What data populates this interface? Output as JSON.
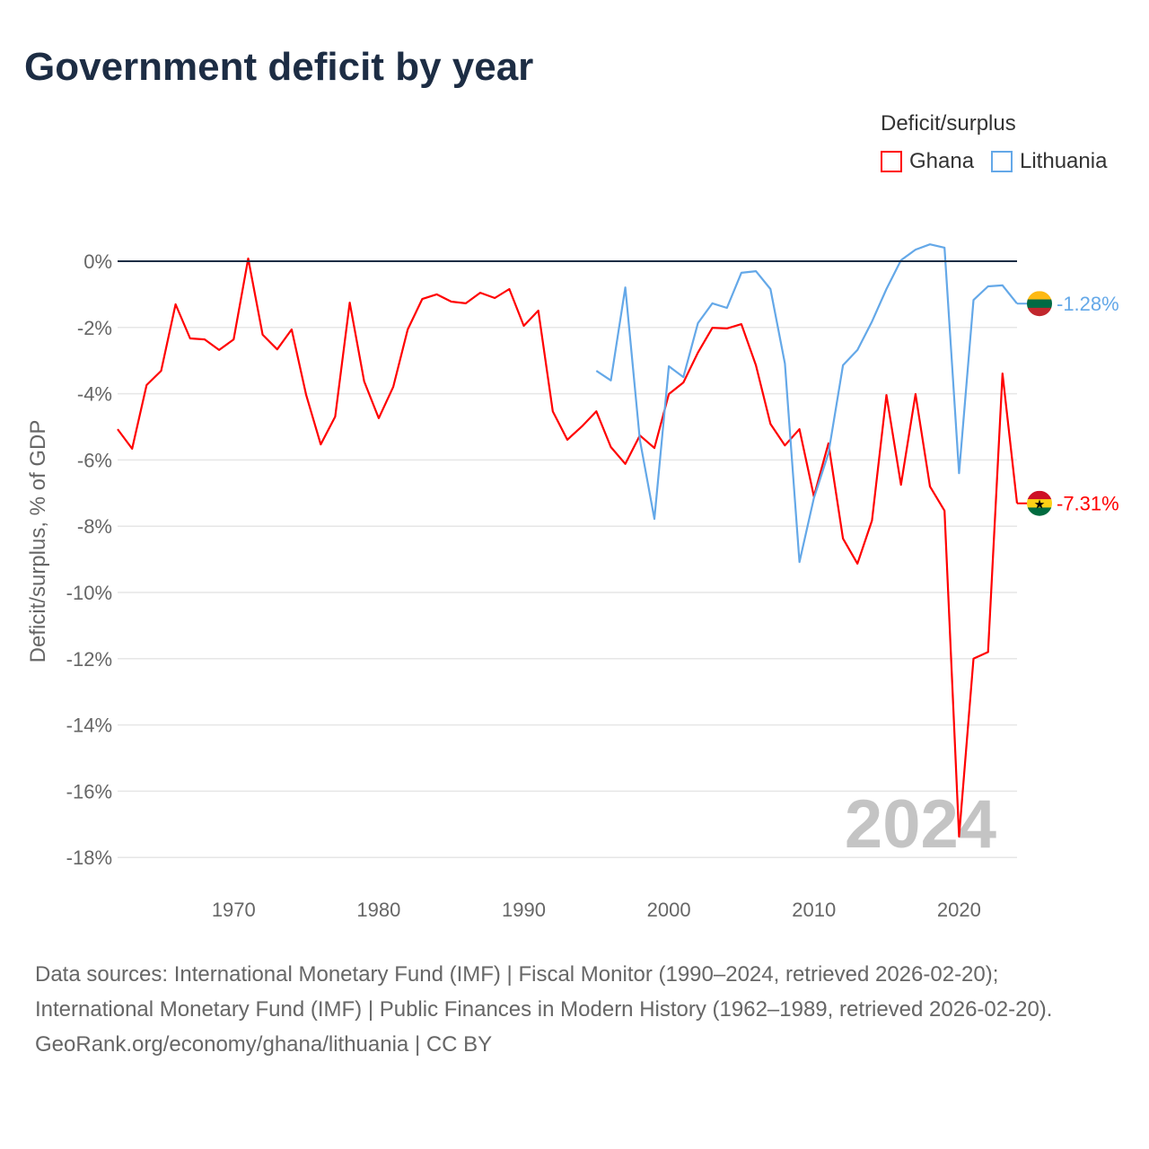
{
  "title": "Government deficit by year",
  "legend": {
    "title": "Deficit/surplus",
    "items": [
      "Ghana",
      "Lithuania"
    ]
  },
  "year_watermark": "2024",
  "sources": {
    "line1": "Data sources: International Monetary Fund (IMF) | Fiscal Monitor (1990–2024, retrieved 2026-02-20);",
    "line2": "International Monetary Fund (IMF) | Public Finances in Modern History (1962–1989, retrieved 2026-02-20).",
    "line3": "GeoRank.org/economy/ghana/lithuania | CC BY"
  },
  "chart_data": {
    "type": "line",
    "title": "Government deficit by year",
    "xlabel": "",
    "ylabel": "Deficit/surplus, % of GDP",
    "xlim": [
      1962,
      2024
    ],
    "ylim": [
      -18.5,
      0.6
    ],
    "xticks": [
      1970,
      1980,
      1990,
      2000,
      2010,
      2020
    ],
    "yticks": [
      0,
      -2,
      -4,
      -6,
      -8,
      -10,
      -12,
      -14,
      -16,
      -18
    ],
    "ytick_labels": [
      "0%",
      "-2%",
      "-4%",
      "-6%",
      "-8%",
      "-10%",
      "-12%",
      "-14%",
      "-16%",
      "-18%"
    ],
    "grid": true,
    "legend_position": "top-right",
    "series": [
      {
        "name": "Ghana",
        "color": "#ff0000",
        "end_label": "-7.31%",
        "start_year": 1962,
        "values": [
          -5.07,
          -5.66,
          -3.74,
          -3.31,
          -1.3,
          -2.33,
          -2.36,
          -2.68,
          -2.36,
          0.08,
          -2.22,
          -2.66,
          -2.06,
          -4.04,
          -5.53,
          -4.69,
          -1.25,
          -3.63,
          -4.74,
          -3.79,
          -2.06,
          -1.14,
          -1.0,
          -1.22,
          -1.27,
          -0.95,
          -1.11,
          -0.84,
          -1.95,
          -1.49,
          -4.53,
          -5.39,
          -4.99,
          -4.53,
          -5.61,
          -6.12,
          -5.26,
          -5.64,
          -4.01,
          -3.66,
          -2.76,
          -2.01,
          -2.03,
          -1.9,
          -3.14,
          -4.91,
          -5.56,
          -5.07,
          -7.1,
          -5.5,
          -8.37,
          -9.13,
          -7.83,
          -4.04,
          -6.75,
          -4.01,
          -6.8,
          -7.53,
          -17.37,
          -12.0,
          -11.8,
          -3.39,
          -7.31
        ]
      },
      {
        "name": "Lithuania",
        "color": "#64a8e8",
        "end_label": "-1.28%",
        "start_year": 1995,
        "values": [
          -3.31,
          -3.6,
          -0.79,
          -5.39,
          -7.78,
          -3.17,
          -3.5,
          -1.87,
          -1.27,
          -1.41,
          -0.35,
          -0.3,
          -0.84,
          -3.09,
          -9.08,
          -7.15,
          -5.8,
          -3.14,
          -2.68,
          -1.82,
          -0.84,
          0.03,
          0.35,
          0.51,
          0.41,
          -6.4,
          -1.17,
          -0.76,
          -0.73,
          -1.28
        ]
      }
    ]
  }
}
